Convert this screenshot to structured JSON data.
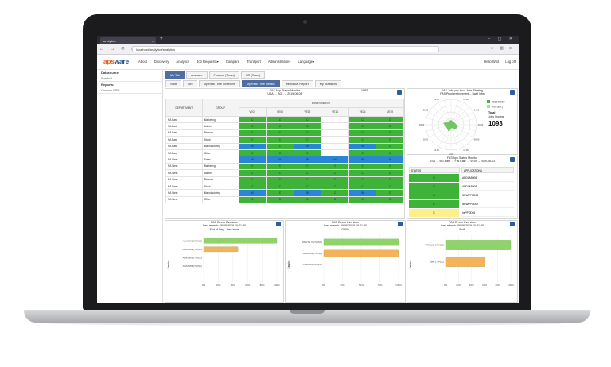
{
  "browser": {
    "tab_title": "analytics",
    "url": "localhost/analytics/analytics"
  },
  "app": {
    "logo_part1": "aps",
    "logo_part2": "ware",
    "menu": [
      "About",
      "Discovery",
      "Analytics",
      "Job Requests▾",
      "Compare",
      "Transport",
      "Administration▾",
      "Language▾"
    ],
    "user_greeting": "Hello Whit",
    "logout": "Log off"
  },
  "sidebar": {
    "datasource_label": "Datasource:",
    "datasource_value": "Survival",
    "reports_label": "Reports:",
    "reports_value": "Custom GRC"
  },
  "tabs_row1": [
    "My Tab",
    "apsware",
    "Finance (Team)",
    "HR (Team)"
  ],
  "tabs_row2": [
    "Swift",
    "NR",
    "My Real Time Overview",
    "My Real Time Details",
    "Historical Report",
    "My Statistics"
  ],
  "status_monitor": {
    "title1": "FAS App Status Monitor",
    "title2": "USA → BG... – 2019-06-06",
    "badge": "1093",
    "col_department": "DEPARTMENT",
    "col_group": "GROUP",
    "col_environment": "ENVIRONMENT",
    "env_cols": [
      "VE01",
      "VE03",
      "VE12",
      "VE14",
      "VE24",
      "VE39"
    ],
    "rows": [
      {
        "dept": "NA East",
        "group": "Marketing",
        "cells": [
          "g",
          "g",
          "g",
          "w",
          "g",
          "g"
        ]
      },
      {
        "dept": "NA East",
        "group": "Admin",
        "cells": [
          "g",
          "g",
          "g",
          "w",
          "g",
          "g"
        ]
      },
      {
        "dept": "NA East",
        "group": "Finance",
        "cells": [
          "g",
          "g",
          "g",
          "w",
          "g",
          "g"
        ]
      },
      {
        "dept": "NA East",
        "group": "Stock",
        "cells": [
          "g",
          "g",
          "g",
          "w",
          "g",
          "g"
        ]
      },
      {
        "dept": "NA East",
        "group": "Manufacturing",
        "cells": [
          "b",
          "g",
          "b",
          "w",
          "b",
          "g"
        ]
      },
      {
        "dept": "NA East",
        "group": "Other",
        "cells": [
          "g",
          "g",
          "g",
          "w",
          "g",
          "g"
        ]
      },
      {
        "dept": "NA West",
        "group": "Sales",
        "cells": [
          "b",
          "b",
          "b",
          "b",
          "b",
          "b"
        ]
      },
      {
        "dept": "NA West",
        "group": "Marketing",
        "cells": [
          "g",
          "g",
          "g",
          "g",
          "g",
          "g"
        ]
      },
      {
        "dept": "NA West",
        "group": "Admin",
        "cells": [
          "g",
          "g",
          "g",
          "g",
          "g",
          "g"
        ]
      },
      {
        "dept": "NA West",
        "group": "Finance",
        "cells": [
          "g",
          "g",
          "g",
          "g",
          "g",
          "g"
        ]
      },
      {
        "dept": "NA West",
        "group": "Stock",
        "cells": [
          "g",
          "g",
          "g",
          "g",
          "g",
          "g"
        ]
      },
      {
        "dept": "NA West",
        "group": "Manufacturing",
        "cells": [
          "b",
          "g",
          "b",
          "g",
          "b",
          "g"
        ]
      },
      {
        "dept": "NA West",
        "group": "Other",
        "cells": [
          "g",
          "g",
          "g",
          "g",
          "g",
          "g"
        ]
      }
    ]
  },
  "radar": {
    "title1": "FAS Jobs per hour Jobs Starting",
    "title2": "FAS Prod environment – Swift jobs",
    "legend": [
      "2019/06/19",
      "(no. dim.)"
    ],
    "total_label": "Total",
    "total_sub": "Jobs Starting",
    "total_value": "1093",
    "hours": [
      "00:00",
      "01:00",
      "02:00",
      "03:00",
      "04:00",
      "05:00",
      "06:00",
      "07:00",
      "08:00",
      "09:00",
      "10:00",
      "11:00",
      "12:00",
      "13:00",
      "14:00",
      "15:00",
      "16:00",
      "17:00",
      "18:00",
      "19:00",
      "20:00",
      "21:00",
      "22:00",
      "23:00"
    ]
  },
  "app_status": {
    "title1": "FAS App Status Monitor",
    "title2": "USA → BG East → FIN East → VE09 – 2019-06-22",
    "col_status": "STATUS",
    "col_apps": "APPLICATIONS",
    "rows": [
      {
        "status": "C",
        "app": "ADDLAB008",
        "color": "g"
      },
      {
        "status": "C",
        "app": "ANDLAB008",
        "color": "g"
      },
      {
        "status": "C",
        "app": "NEWPPOD04",
        "color": "g"
      },
      {
        "status": "C",
        "app": "NEWPPOD02",
        "color": "g"
      },
      {
        "status": "E",
        "app": "nePPOD03",
        "color": "y"
      }
    ]
  },
  "error_panels": [
    {
      "title1": "FAS Errors Overview",
      "title2": "Last refresh: 06/06/2019 10:41:30",
      "title3": "End of Day - Insurance",
      "ylabel": "Service",
      "labels": [
        "ANKSW1 (TWSC)",
        "ANKSW2 (TWSC)",
        "ANKSW3 (TWSC)",
        "ANKSW4 (TWSC)"
      ],
      "values": [
        100,
        47,
        0,
        0
      ],
      "colors": [
        "#8fd36a",
        "#f4b25a",
        "#8fd36a",
        "#8fd36a"
      ],
      "ticks": [
        "0%",
        "20%",
        "40%",
        "60%",
        "80%",
        "100%"
      ]
    },
    {
      "title1": "FAS Errors Overview",
      "title2": "Last refresh: 06/06/2019 10:41:30",
      "title3": "GIRO",
      "ylabel": "Service",
      "labels": [
        "SWGTH C (TWSC)",
        "GIRO651 (TWSC)",
        "GIRO001 (TWSC)"
      ],
      "values": [
        100,
        100,
        0
      ],
      "colors": [
        "#8fd36a",
        "#f4b25a",
        "#8fd36a"
      ],
      "ticks": [
        "0%",
        "25%",
        "50%",
        "75%",
        "100%"
      ]
    },
    {
      "title1": "FAS Errors Overview",
      "title2": "Last refresh: 06/06/2019 10:41:30",
      "title3": "Swift",
      "ylabel": "Service",
      "labels": [
        "TTNA(C) (TWSC)",
        "Swift (TWSC)"
      ],
      "values": [
        100,
        60
      ],
      "colors": [
        "#8fd36a",
        "#f4b25a"
      ],
      "ticks": [
        "0%",
        "20%",
        "40%",
        "60%",
        "80%",
        "100%"
      ]
    }
  ]
}
